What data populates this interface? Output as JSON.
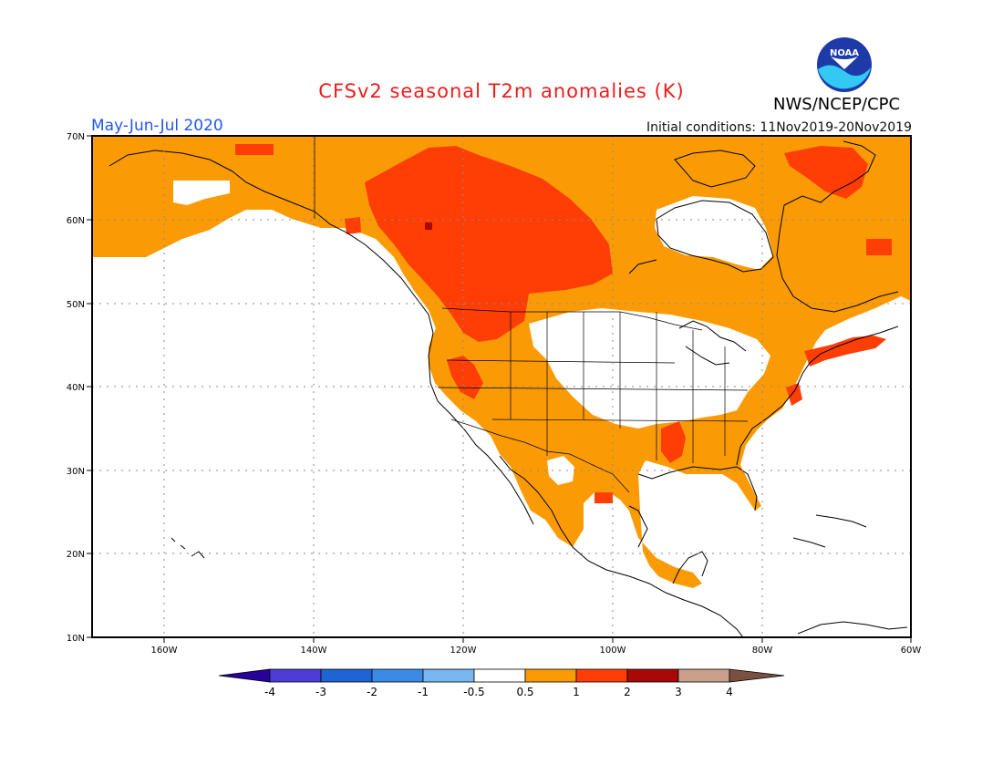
{
  "header": {
    "title": "CFSv2 seasonal T2m anomalies (K)",
    "period": "May-Jun-Jul 2020",
    "initial_conditions": "Initial conditions: 11Nov2019-20Nov2019",
    "agency": "NWS/NCEP/CPC",
    "logo_text": "NOAA"
  },
  "map": {
    "lon_range": [
      -173,
      -60
    ],
    "lat_range": [
      10,
      70
    ],
    "lat_labels": [
      "10N",
      "20N",
      "30N",
      "40N",
      "50N",
      "60N",
      "70N"
    ],
    "lon_labels": [
      "160W",
      "140W",
      "120W",
      "100W",
      "80W",
      "60W"
    ],
    "grid": "dotted"
  },
  "colorbar": {
    "labels": [
      "-4",
      "-3",
      "-2",
      "-1",
      "-0.5",
      "0.5",
      "1",
      "2",
      "3",
      "4"
    ],
    "colors": [
      "#28009c",
      "#4e3cd6",
      "#1f64d3",
      "#3b8be6",
      "#79b7f0",
      "#ffffff",
      "#fa9b06",
      "#ff3e06",
      "#a80906",
      "#c9a08c",
      "#7a5040"
    ]
  },
  "palette": {
    "lt1": "#fa9b06",
    "lt2": "#ff3e06",
    "lt3": "#a80906",
    "neutral": "#ffffff"
  }
}
